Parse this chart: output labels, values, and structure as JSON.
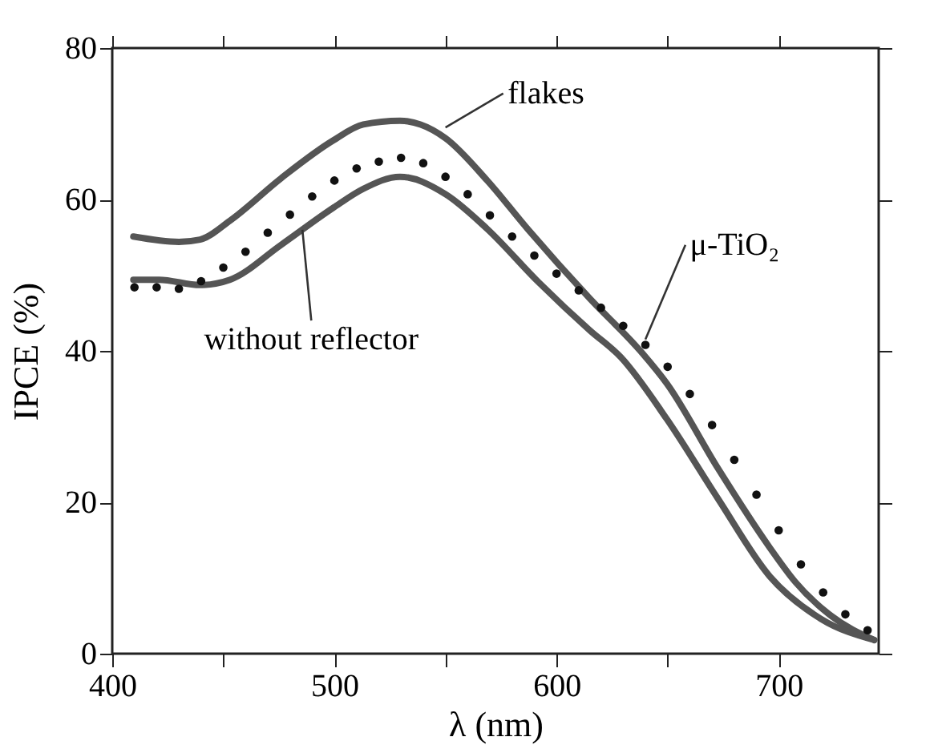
{
  "chart_data": {
    "type": "line",
    "xlabel": "λ (nm)",
    "ylabel": "IPCE (%)",
    "xlim": [
      400,
      745
    ],
    "ylim": [
      0,
      80
    ],
    "xticks": [
      400,
      {
        "value": 450,
        "label": null
      },
      500,
      {
        "value": 550,
        "label": null
      },
      600,
      {
        "value": 650,
        "label": null
      },
      700
    ],
    "yticks": [
      0,
      20,
      40,
      60,
      80
    ],
    "grid": false,
    "line_style": "solid",
    "series": [
      {
        "color": "#555555",
        "x": [
          409.5,
          430,
          439.5,
          453,
          476,
          499.5,
          513,
          529.5,
          538.8,
          550,
          568.8,
          587,
          615,
          638,
          649.6,
          672.6,
          696,
          707.4,
          723.6,
          743
        ],
        "values": [
          55.1,
          54.4,
          54.7,
          57.2,
          62.8,
          67.8,
          69.9,
          70.4,
          69.9,
          68.1,
          62.5,
          56.1,
          46.9,
          39.9,
          35.7,
          24.5,
          14.0,
          9.5,
          5.0,
          1.8
        ]
      },
      {
        "color": "#555555",
        "x": [
          409.5,
          421,
          439.5,
          453,
          476,
          499.5,
          513,
          529.5,
          550,
          568.8,
          591.8,
          615,
          628.8,
          649.6,
          672.6,
          696,
          719,
          743
        ],
        "values": [
          49.4,
          49.4,
          48.7,
          49.4,
          54.0,
          58.9,
          61.4,
          63.0,
          60.7,
          56.1,
          49.1,
          42.7,
          39.2,
          31.0,
          20.5,
          10.2,
          4.6,
          1.8
        ]
      },
      {
        "type": "scatter",
        "marker": "circle",
        "color": "#111111",
        "x": [
          410,
          420,
          430,
          440,
          450,
          460,
          470,
          480,
          490,
          500,
          510,
          520,
          530,
          540,
          550,
          560,
          570,
          580,
          590,
          600,
          610,
          620,
          630,
          640,
          650,
          660,
          670,
          680,
          690,
          700,
          710,
          720,
          730,
          740
        ],
        "values": [
          48.4,
          48.4,
          48.2,
          49.2,
          51.0,
          53.1,
          55.6,
          58.0,
          60.4,
          62.5,
          64.1,
          65.0,
          65.5,
          64.8,
          63.0,
          60.7,
          57.9,
          55.1,
          52.6,
          50.2,
          48.0,
          45.7,
          43.3,
          40.8,
          37.9,
          34.3,
          30.2,
          25.6,
          21.0,
          16.3,
          11.8,
          8.1,
          5.2,
          3.1
        ]
      }
    ],
    "annotations": [
      {
        "text": "flakes",
        "x": 550,
        "y": 69.5
      },
      {
        "text": "μ-TiO₂",
        "x": 640,
        "y": 41.5
      },
      {
        "text": "without reflector",
        "x": 485.6,
        "y": 56.0
      }
    ]
  }
}
